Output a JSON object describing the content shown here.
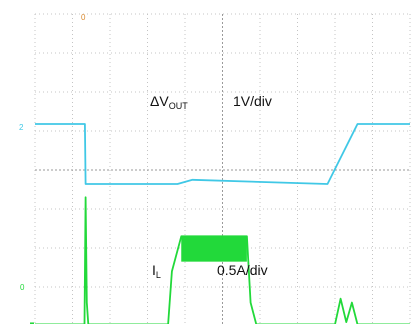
{
  "chart_data": {
    "type": "line",
    "title": "",
    "xlabel": "",
    "ylabel": "",
    "grid": true,
    "legend": "none",
    "series": [
      {
        "label_main": "ΔV",
        "label_sub": "OUT",
        "scale": "1V/div",
        "channel_marker": "2",
        "color": "#40c8e6",
        "x": [
          0,
          1.33,
          1.35,
          2.0,
          3.8,
          4.2,
          7.8,
          8.6,
          10
        ],
        "y": [
          5.18,
          5.18,
          3.64,
          3.64,
          3.64,
          3.75,
          3.64,
          5.18,
          5.18
        ]
      },
      {
        "label_main": "I",
        "label_sub": "L",
        "scale": "0.5A/div",
        "channel_marker": "0",
        "color": "#22d93a",
        "x": [
          0,
          1.32,
          1.35,
          1.38,
          1.42,
          3.55,
          3.65,
          3.9,
          5.65,
          5.75,
          5.9,
          8.0,
          8.15,
          8.3,
          8.45,
          8.6,
          10
        ],
        "y": [
          0.04,
          0.04,
          3.3,
          0.6,
          0.04,
          0.04,
          1.4,
          2.3,
          2.3,
          0.6,
          0.04,
          0.04,
          0.7,
          0.1,
          0.6,
          0.04,
          0.04
        ],
        "switching_band": [
          3.9,
          5.65,
          1.65,
          2.3
        ]
      }
    ],
    "trigger_marker": "0"
  }
}
